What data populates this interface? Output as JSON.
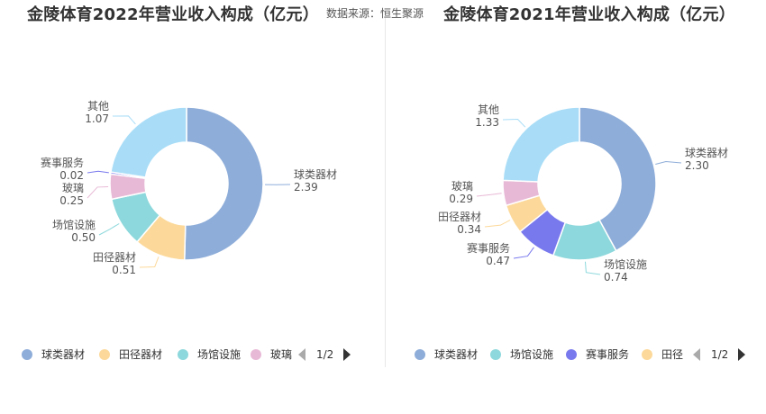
{
  "source_text": "数据来源：恒生聚源",
  "colors": {
    "球类器材": "#8eadd9",
    "田径器材": "#fcd99a",
    "场馆设施": "#8dd8dc",
    "玻璃": "#e8b9d6",
    "赛事服务": "#7979ee",
    "其他": "#a9ddf7",
    "label_text": "#555555",
    "legend_text": "#333333",
    "pager_active": "#333333",
    "pager_inactive": "#aaaaaa"
  },
  "chart_data": [
    {
      "type": "pie",
      "donut": true,
      "title": "金陵体育2022年营业收入构成（亿元）",
      "slices": [
        {
          "name": "球类器材",
          "value": 2.39,
          "label": "2.39"
        },
        {
          "name": "田径器材",
          "value": 0.51,
          "label": "0.51"
        },
        {
          "name": "场馆设施",
          "value": 0.5,
          "label": "0.50"
        },
        {
          "name": "玻璃",
          "value": 0.25,
          "label": "0.25"
        },
        {
          "name": "赛事服务",
          "value": 0.02,
          "label": "0.02"
        },
        {
          "name": "其他",
          "value": 1.07,
          "label": "1.07"
        }
      ],
      "legend": {
        "placement": "bottom",
        "visible_items": [
          "球类器材",
          "田径器材",
          "场馆设施",
          "玻璃"
        ],
        "page": "1/2"
      }
    },
    {
      "type": "pie",
      "donut": true,
      "title": "金陵体育2021年营业收入构成（亿元）",
      "slices": [
        {
          "name": "球类器材",
          "value": 2.3,
          "label": "2.30"
        },
        {
          "name": "场馆设施",
          "value": 0.74,
          "label": "0.74"
        },
        {
          "name": "赛事服务",
          "value": 0.47,
          "label": "0.47"
        },
        {
          "name": "田径器材",
          "value": 0.34,
          "label": "0.34"
        },
        {
          "name": "玻璃",
          "value": 0.29,
          "label": "0.29"
        },
        {
          "name": "其他",
          "value": 1.33,
          "label": "1.33"
        }
      ],
      "legend": {
        "placement": "bottom",
        "visible_items": [
          "球类器材",
          "场馆设施",
          "赛事服务",
          "田径"
        ],
        "page": "1/2"
      }
    }
  ]
}
